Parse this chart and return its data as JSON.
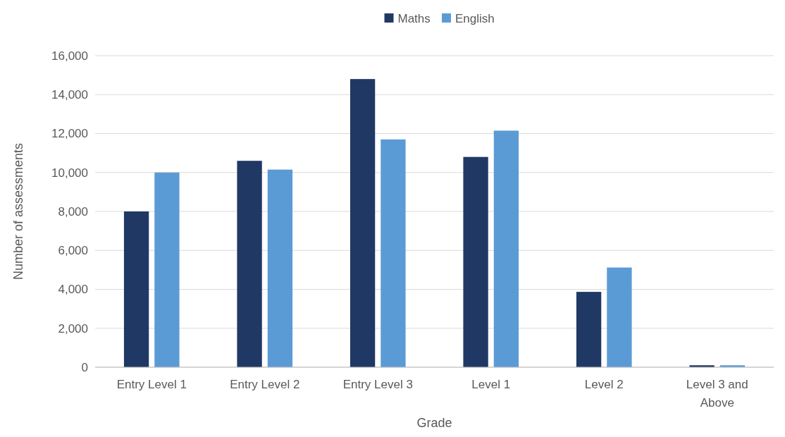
{
  "chart_data": {
    "type": "bar",
    "xlabel": "Grade",
    "ylabel": "Number of assessments",
    "categories": [
      "Entry Level 1",
      "Entry Level 2",
      "Entry Level 3",
      "Level 1",
      "Level 2",
      "Level 3 and Above"
    ],
    "series": [
      {
        "name": "Maths",
        "color": "#203864",
        "values": [
          8000,
          10600,
          14800,
          10800,
          3870,
          100
        ]
      },
      {
        "name": "English",
        "color": "#5b9bd5",
        "values": [
          10000,
          10150,
          11700,
          12150,
          5120,
          100
        ]
      }
    ],
    "ylim": [
      0,
      16000
    ],
    "yticks": [
      {
        "value": 0,
        "label": "0"
      },
      {
        "value": 2000,
        "label": "2,000"
      },
      {
        "value": 4000,
        "label": "4,000"
      },
      {
        "value": 6000,
        "label": "6,000"
      },
      {
        "value": 8000,
        "label": "8,000"
      },
      {
        "value": 10000,
        "label": "10,000"
      },
      {
        "value": 12000,
        "label": "12,000"
      },
      {
        "value": 14000,
        "label": "14,000"
      },
      {
        "value": 16000,
        "label": "16,000"
      }
    ],
    "grid": "y",
    "legend": "top"
  }
}
